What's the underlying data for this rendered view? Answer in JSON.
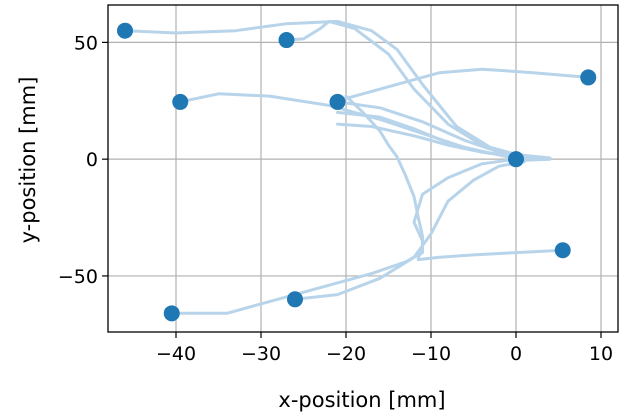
{
  "chart_data": {
    "type": "scatter",
    "title": "",
    "xlabel": "x-position [mm]",
    "ylabel": "y-position [mm]",
    "xlim": [
      -48,
      12
    ],
    "ylim": [
      -74,
      66
    ],
    "xticks": [
      -40,
      -30,
      -20,
      -10,
      0,
      10
    ],
    "yticks": [
      -50,
      0,
      50
    ],
    "xtick_labels": [
      "−40",
      "−30",
      "−20",
      "−10",
      "0",
      "10"
    ],
    "ytick_labels": [
      "−50",
      "0",
      "50"
    ],
    "grid": true,
    "legend": false,
    "colors": {
      "points": "#1f77b4",
      "paths": "#b8d4ea",
      "grid": "#b0b0b0",
      "axes": "#000000"
    },
    "points": [
      {
        "x": -46,
        "y": 55
      },
      {
        "x": -27,
        "y": 51
      },
      {
        "x": -39.5,
        "y": 24.5
      },
      {
        "x": -21,
        "y": 24.5
      },
      {
        "x": 8.5,
        "y": 35
      },
      {
        "x": 0,
        "y": 0
      },
      {
        "x": 5.5,
        "y": -39
      },
      {
        "x": -40.5,
        "y": -66
      },
      {
        "x": -26,
        "y": -60
      }
    ],
    "paths": [
      [
        [
          -46,
          55
        ],
        [
          -40,
          54
        ],
        [
          -33,
          55
        ],
        [
          -27,
          58
        ],
        [
          -21,
          59
        ],
        [
          -17,
          55
        ],
        [
          -14,
          47
        ],
        [
          -11,
          32
        ],
        [
          -7,
          14
        ],
        [
          -3,
          5
        ],
        [
          1,
          1
        ],
        [
          4,
          0
        ],
        [
          1,
          -0.5
        ]
      ],
      [
        [
          -27,
          51
        ],
        [
          -25,
          51.5
        ],
        [
          -23,
          56
        ],
        [
          -22,
          59
        ],
        [
          -19,
          56
        ],
        [
          -15,
          45
        ],
        [
          -12,
          30
        ],
        [
          -8,
          15
        ],
        [
          -4,
          6
        ],
        [
          0,
          2
        ],
        [
          4,
          0.5
        ],
        [
          1,
          0
        ]
      ],
      [
        [
          -39.5,
          24.5
        ],
        [
          -35,
          28
        ],
        [
          -29,
          27
        ],
        [
          -22,
          23
        ],
        [
          -16,
          17
        ],
        [
          -11,
          11
        ],
        [
          -6,
          5
        ],
        [
          -1,
          1
        ],
        [
          2,
          0
        ]
      ],
      [
        [
          -21,
          24.5
        ],
        [
          -16,
          22
        ],
        [
          -11,
          16
        ],
        [
          -6,
          8
        ],
        [
          -2,
          3
        ],
        [
          1,
          1
        ]
      ],
      [
        [
          8.5,
          35
        ],
        [
          2,
          37
        ],
        [
          -4,
          38.5
        ],
        [
          -9,
          37
        ],
        [
          -13,
          33
        ],
        [
          -17,
          29
        ],
        [
          -21,
          25
        ]
      ],
      [
        [
          -21,
          15
        ],
        [
          -17,
          14
        ],
        [
          -12,
          10
        ],
        [
          -8,
          6
        ],
        [
          -4,
          3
        ],
        [
          0,
          1
        ]
      ],
      [
        [
          -21,
          20
        ],
        [
          -16,
          18
        ],
        [
          -12,
          13
        ],
        [
          -8,
          7
        ],
        [
          -4,
          3
        ],
        [
          0,
          1
        ]
      ],
      [
        [
          -20,
          27
        ],
        [
          -18,
          20
        ],
        [
          -16,
          12
        ],
        [
          -15,
          6
        ],
        [
          -14,
          1
        ],
        [
          -13,
          -7
        ],
        [
          -12,
          -16
        ],
        [
          -11.5,
          -25
        ],
        [
          -11,
          -33
        ],
        [
          -11,
          -39
        ],
        [
          -11.5,
          -42
        ]
      ],
      [
        [
          5.5,
          -39
        ],
        [
          0,
          -40
        ],
        [
          -5,
          -41
        ],
        [
          -9,
          -42
        ],
        [
          -11.5,
          -43
        ]
      ],
      [
        [
          -40.5,
          -66
        ],
        [
          -37,
          -66
        ],
        [
          -34,
          -66
        ],
        [
          -29,
          -61
        ],
        [
          -23,
          -55
        ],
        [
          -17,
          -49
        ],
        [
          -13,
          -44
        ],
        [
          -11,
          -40
        ],
        [
          -11,
          -35
        ],
        [
          -12,
          -27
        ],
        [
          -11,
          -15
        ],
        [
          -8,
          -8
        ],
        [
          -4,
          -2
        ],
        [
          0,
          0
        ]
      ],
      [
        [
          -26,
          -60
        ],
        [
          -21,
          -58
        ],
        [
          -16,
          -51
        ],
        [
          -12,
          -42
        ],
        [
          -10,
          -32
        ],
        [
          -8,
          -18
        ],
        [
          -5,
          -9
        ],
        [
          -2,
          -3
        ],
        [
          1,
          -1
        ]
      ]
    ]
  }
}
